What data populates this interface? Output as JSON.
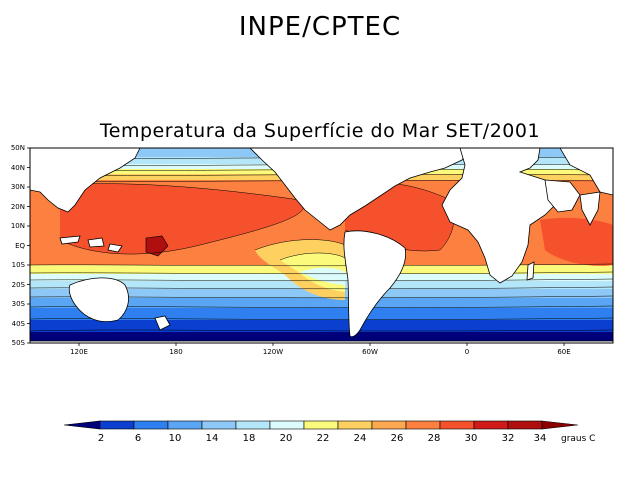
{
  "header": {
    "title": "INPE/CPTEC"
  },
  "map": {
    "title": "Temperatura da Superfície do Mar SET/2001",
    "lat_labels": [
      "50N",
      "40N",
      "30N",
      "20N",
      "10N",
      "EQ",
      "10S",
      "20S",
      "30S",
      "40S",
      "50S"
    ],
    "lon_labels": [
      "120E",
      "180",
      "120W",
      "60W",
      "0",
      "60E"
    ]
  },
  "colorbar": {
    "tick_labels": [
      "2",
      "6",
      "10",
      "14",
      "18",
      "20",
      "22",
      "24",
      "26",
      "28",
      "30",
      "32",
      "34"
    ],
    "units": "graus C",
    "colors": [
      "#00007a",
      "#0a3fd0",
      "#2f7ff0",
      "#5aa6f4",
      "#8ec8f6",
      "#b4e6fa",
      "#dcfcfc",
      "#fbfa7c",
      "#fdd060",
      "#fca850",
      "#fc8040",
      "#f4512c",
      "#d01a1a",
      "#b00f10",
      "#8a0000"
    ]
  },
  "legend_colors": {
    "land": "#ffffff",
    "coast": "#000000"
  }
}
